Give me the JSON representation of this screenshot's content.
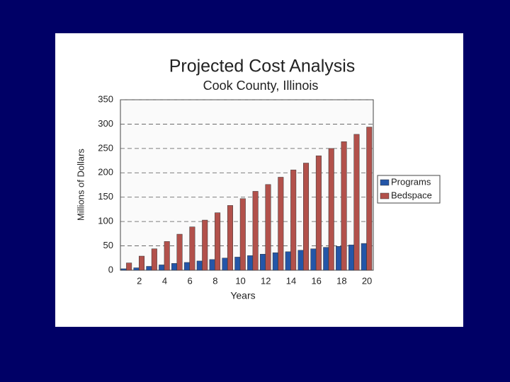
{
  "chart_data": {
    "type": "bar",
    "title": "Projected Cost Analysis",
    "subtitle": "Cook County, Illinois",
    "x_label": "Years",
    "y_label": "Millions of Dollars",
    "categories": [
      null,
      2,
      null,
      4,
      null,
      6,
      null,
      8,
      null,
      10,
      null,
      12,
      null,
      14,
      null,
      16,
      null,
      18,
      null,
      20
    ],
    "series": [
      {
        "name": "Programs",
        "color": "#2456a8",
        "values": [
          3,
          5,
          8,
          11,
          14,
          16,
          19,
          22,
          25,
          27,
          30,
          33,
          36,
          38,
          41,
          44,
          47,
          49,
          52,
          55
        ]
      },
      {
        "name": "Bedspace",
        "color": "#b2514b",
        "values": [
          15,
          29,
          44,
          59,
          74,
          89,
          103,
          118,
          133,
          147,
          162,
          176,
          191,
          206,
          220,
          235,
          250,
          264,
          279,
          294
        ]
      }
    ],
    "ylim": [
      0,
      350
    ],
    "yticks": [
      0,
      50,
      100,
      150,
      200,
      250,
      300,
      350
    ],
    "grid": true,
    "legend": "right"
  }
}
